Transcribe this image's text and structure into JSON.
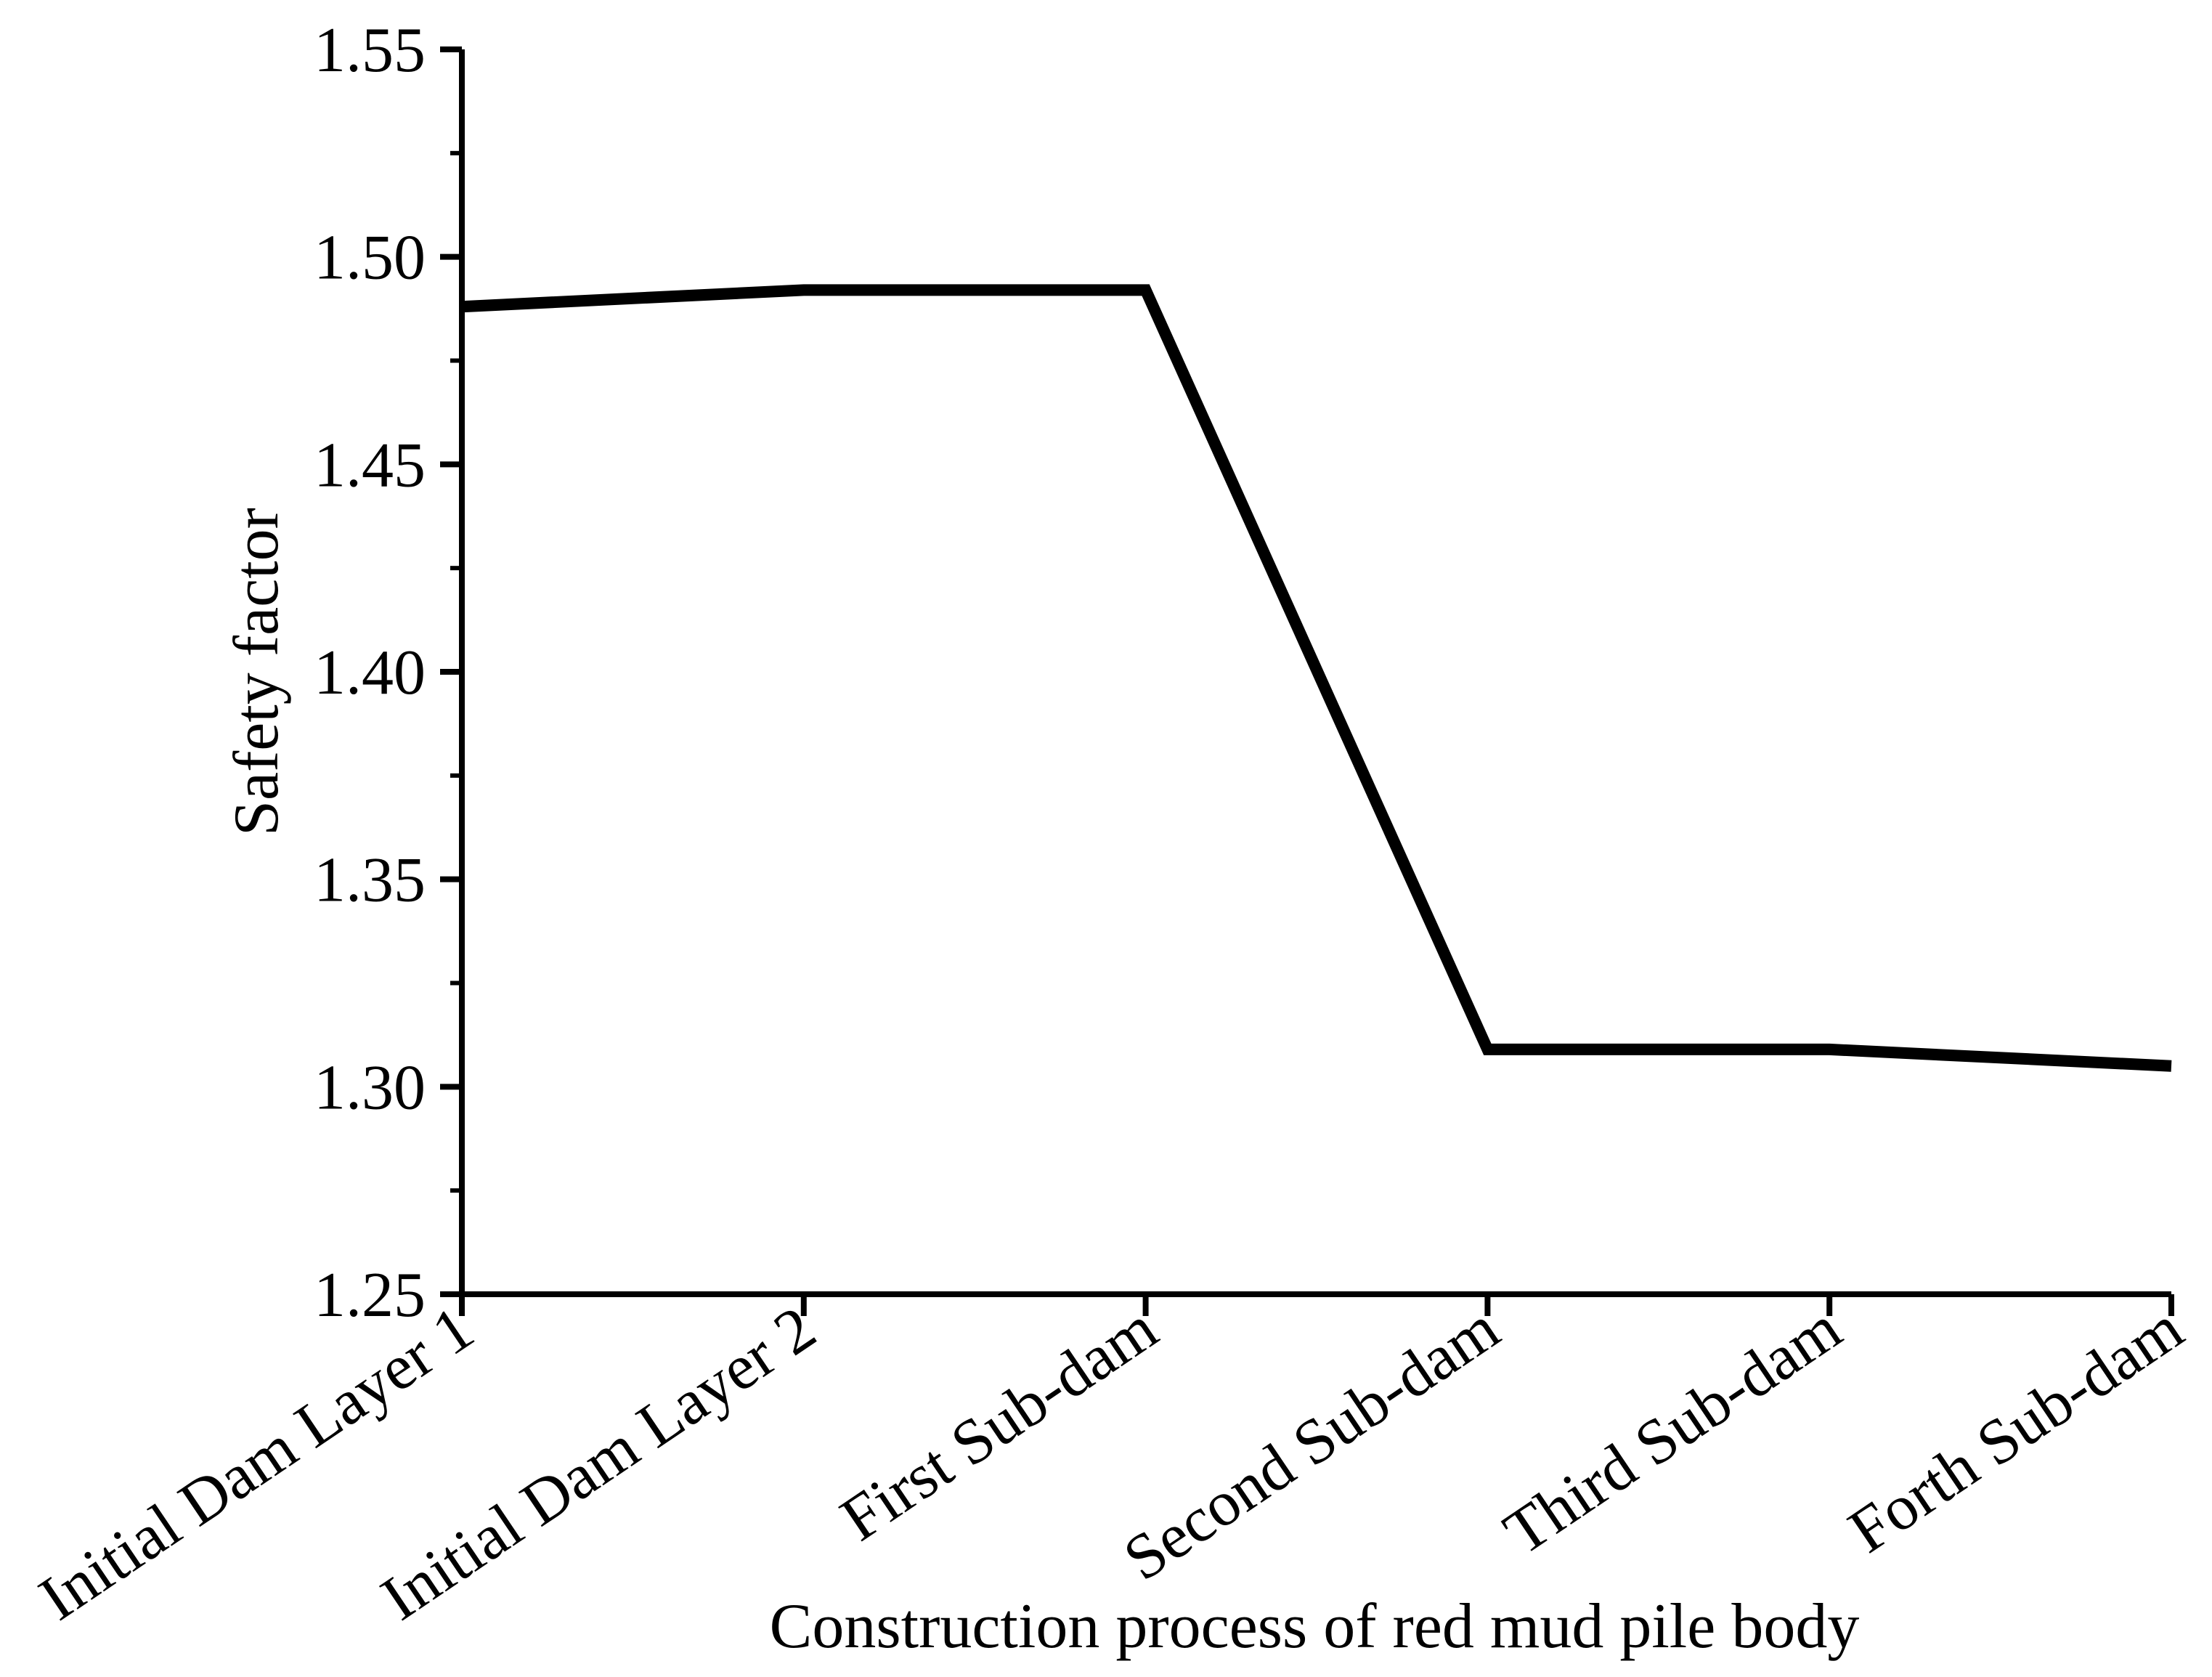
{
  "chart_data": {
    "type": "line",
    "title": "",
    "xlabel": "Construction process of red mud pile body",
    "ylabel": "Safety factor",
    "categories": [
      "Initial Dam Layer 1",
      "Initial Dam Layer 2",
      "First Sub-dam",
      "Second Sub-dam",
      "Third Sub-dam",
      "Forth Sub-dam"
    ],
    "series": [
      {
        "values": [
          1.488,
          1.492,
          1.492,
          1.309,
          1.309,
          1.305
        ],
        "color": "#000000"
      }
    ],
    "ylim": [
      1.25,
      1.55
    ],
    "yticks": [
      "1.25",
      "1.30",
      "1.35",
      "1.40",
      "1.45",
      "1.50",
      "1.55"
    ],
    "grid": false,
    "legend": "none"
  }
}
